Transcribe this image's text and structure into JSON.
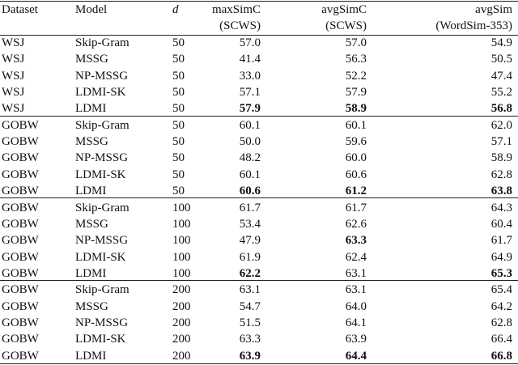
{
  "table": {
    "header": [
      [
        "Dataset"
      ],
      [
        "Model"
      ],
      [
        "d"
      ],
      [
        "maxSimC",
        "(SCWS)"
      ],
      [
        "avgSimC",
        "(SCWS)"
      ],
      [
        "avgSim",
        "(WordSim-353)"
      ]
    ],
    "groups": [
      [
        [
          "WSJ",
          "Skip-Gram",
          "50",
          "57.0",
          "57.0",
          "54.9"
        ],
        [
          "WSJ",
          "MSSG",
          "50",
          "41.4",
          "56.3",
          "50.5"
        ],
        [
          "WSJ",
          "NP-MSSG",
          "50",
          "33.0",
          "52.2",
          "47.4"
        ],
        [
          "WSJ",
          "LDMI-SK",
          "50",
          "57.1",
          "57.9",
          "55.2"
        ],
        [
          "WSJ",
          "LDMI",
          "50",
          {
            "text": "57.9",
            "bold": true
          },
          {
            "text": "58.9",
            "bold": true
          },
          {
            "text": "56.8",
            "bold": true
          }
        ]
      ],
      [
        [
          "GOBW",
          "Skip-Gram",
          "50",
          "60.1",
          "60.1",
          "62.0"
        ],
        [
          "GOBW",
          "MSSG",
          "50",
          "50.0",
          "59.6",
          "57.1"
        ],
        [
          "GOBW",
          "NP-MSSG",
          "50",
          "48.2",
          "60.0",
          "58.9"
        ],
        [
          "GOBW",
          "LDMI-SK",
          "50",
          "60.1",
          "60.6",
          "62.8"
        ],
        [
          "GOBW",
          "LDMI",
          "50",
          {
            "text": "60.6",
            "bold": true
          },
          {
            "text": "61.2",
            "bold": true
          },
          {
            "text": "63.8",
            "bold": true
          }
        ]
      ],
      [
        [
          "GOBW",
          "Skip-Gram",
          "100",
          "61.7",
          "61.7",
          "64.3"
        ],
        [
          "GOBW",
          "MSSG",
          "100",
          "53.4",
          "62.6",
          "60.4"
        ],
        [
          "GOBW",
          "NP-MSSG",
          "100",
          "47.9",
          {
            "text": "63.3",
            "bold": true
          },
          "61.7"
        ],
        [
          "GOBW",
          "LDMI-SK",
          "100",
          "61.9",
          "62.4",
          "64.9"
        ],
        [
          "GOBW",
          "LDMI",
          "100",
          {
            "text": "62.2",
            "bold": true
          },
          "63.1",
          {
            "text": "65.3",
            "bold": true
          }
        ]
      ],
      [
        [
          "GOBW",
          "Skip-Gram",
          "200",
          "63.1",
          "63.1",
          "65.4"
        ],
        [
          "GOBW",
          "MSSG",
          "200",
          "54.7",
          "64.0",
          "64.2"
        ],
        [
          "GOBW",
          "NP-MSSG",
          "200",
          "51.5",
          "64.1",
          "62.8"
        ],
        [
          "GOBW",
          "LDMI-SK",
          "200",
          "63.3",
          "63.9",
          "66.4"
        ],
        [
          "GOBW",
          "LDMI",
          "200",
          {
            "text": "63.9",
            "bold": true
          },
          {
            "text": "64.4",
            "bold": true
          },
          {
            "text": "66.8",
            "bold": true
          }
        ]
      ]
    ]
  }
}
